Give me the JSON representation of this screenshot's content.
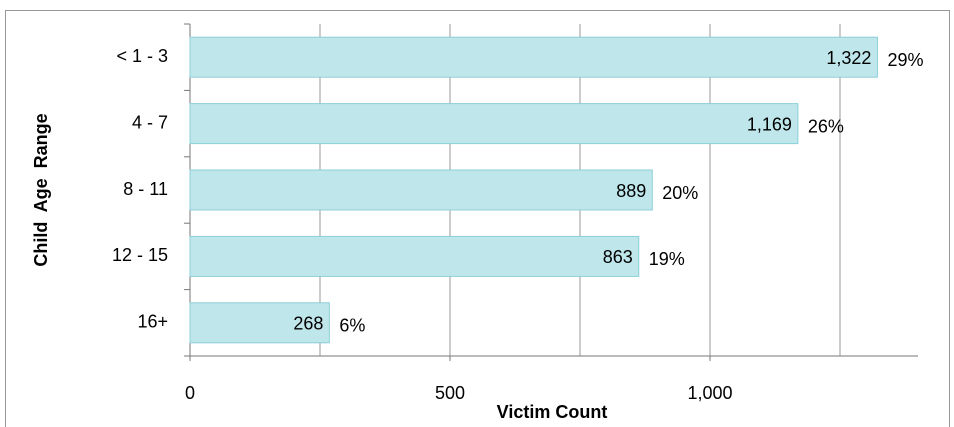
{
  "chart_data": {
    "type": "bar",
    "orientation": "horizontal",
    "x_label": "Victim Count",
    "y_label": "Child  Age  Range",
    "categories": [
      "< 1 - 3",
      "4 - 7",
      "8 - 11",
      "12 - 15",
      "16+"
    ],
    "values": [
      1322,
      1169,
      889,
      863,
      268
    ],
    "value_labels": [
      "1,322",
      "1,169",
      "889",
      "863",
      "268"
    ],
    "percent_labels": [
      "29%",
      "26%",
      "20%",
      "19%",
      "6%"
    ],
    "color": "#bfe6eb",
    "edge_color": "#8ccfd8",
    "xlim": [
      0,
      1400
    ],
    "xticks": [
      0,
      500,
      {
        "value": 1000,
        "label": "1,000"
      }
    ],
    "xgrid": [
      250,
      500,
      750,
      1000,
      1250
    ],
    "grid": true
  }
}
